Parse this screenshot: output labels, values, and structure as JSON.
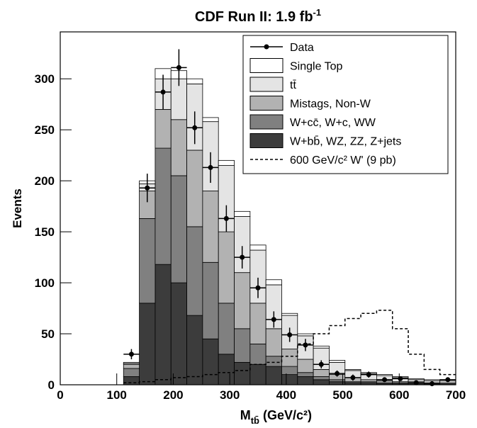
{
  "chart_data": {
    "type": "histogram",
    "title": "CDF Run II: 1.9 fb",
    "title_sup": "-1",
    "ylabel": "Events",
    "xlabel": "M",
    "xlabel_sub": "tb̄",
    "xlabel_rest": " (GeV/c²)",
    "xlim": [
      0,
      700
    ],
    "ylim": [
      0,
      346
    ],
    "xticks": [
      0,
      100,
      200,
      300,
      400,
      500,
      600,
      700
    ],
    "yticks": [
      0,
      50,
      100,
      150,
      200,
      250,
      300
    ],
    "bins": [
      112,
      140,
      168,
      196,
      224,
      252,
      280,
      308,
      336,
      364,
      392,
      420,
      448,
      476,
      504,
      532,
      560,
      588,
      616,
      644,
      672,
      700
    ],
    "stack": [
      {
        "name": "W+bb̄, WZ, ZZ, Z+jets",
        "color": "#3c3c3c",
        "values": [
          8,
          80,
          118,
          100,
          68,
          45,
          30,
          22,
          20,
          18,
          10,
          8,
          5,
          3,
          2,
          2,
          1,
          1,
          1,
          1,
          1
        ]
      },
      {
        "name": "W+cc̄, W+c, WW",
        "color": "#808080",
        "values": [
          8,
          83,
          114,
          105,
          87,
          75,
          50,
          33,
          20,
          10,
          8,
          4,
          3,
          2,
          1,
          1,
          1,
          1,
          0,
          0,
          0
        ]
      },
      {
        "name": "Mistags, Non-W",
        "color": "#b2b2b2",
        "values": [
          4,
          27,
          38,
          55,
          75,
          70,
          70,
          55,
          40,
          27,
          17,
          13,
          7,
          5,
          4,
          2,
          2,
          1,
          2,
          1,
          1
        ]
      },
      {
        "name": "tt̄",
        "color": "#e4e4e4",
        "values": [
          1,
          7,
          30,
          40,
          65,
          68,
          65,
          55,
          52,
          43,
          33,
          23,
          21,
          12,
          7,
          6,
          5,
          4,
          2,
          2,
          2
        ]
      },
      {
        "name": "Single Top",
        "color": "#ffffff",
        "values": [
          1,
          3,
          10,
          8,
          5,
          4,
          5,
          5,
          5,
          5,
          2,
          2,
          2,
          2,
          1,
          1,
          1,
          1,
          1,
          1,
          1
        ]
      }
    ],
    "data_points": {
      "name": "Data",
      "color": "#000000",
      "x": [
        126,
        154,
        182,
        210,
        238,
        266,
        294,
        322,
        350,
        378,
        406,
        434,
        462,
        490,
        518,
        546,
        574,
        602,
        630,
        658,
        686
      ],
      "values": [
        30,
        193,
        287,
        311,
        252,
        213,
        163,
        125,
        95,
        64,
        49,
        39,
        20,
        11,
        7,
        10,
        5,
        6,
        2,
        1,
        5
      ],
      "errors": [
        5,
        14,
        17,
        18,
        16,
        15,
        13,
        11,
        10,
        8,
        7,
        6,
        4,
        3,
        3,
        3,
        2,
        2,
        1,
        1,
        2
      ]
    },
    "signal": {
      "name": "600 GeV/c² W' (9 pb)",
      "color": "#000000",
      "dashed": true,
      "values": [
        2,
        3,
        5,
        7,
        8,
        10,
        12,
        14,
        20,
        22,
        28,
        40,
        50,
        58,
        65,
        70,
        73,
        55,
        30,
        15,
        10
      ]
    }
  }
}
